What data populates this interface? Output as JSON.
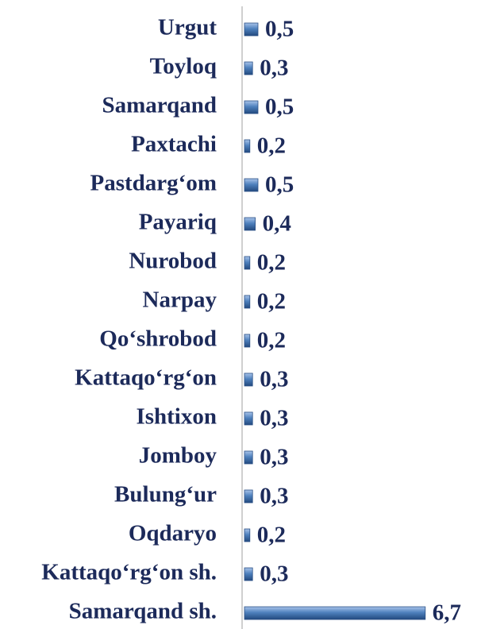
{
  "chart_data": {
    "type": "bar",
    "orientation": "horizontal",
    "categories": [
      "Urgut",
      "Toyloq",
      "Samarqand",
      "Paxtachi",
      "Pastdarg‘om",
      "Payariq",
      "Nurobod",
      "Narpay",
      "Qo‘shrobod",
      "Kattaqo‘rg‘on",
      "Ishtixon",
      "Jomboy",
      "Bulung‘ur",
      "Oqdaryo",
      "Kattaqo‘rg‘on sh.",
      "Samarqand sh."
    ],
    "values": [
      0.5,
      0.3,
      0.5,
      0.2,
      0.5,
      0.4,
      0.2,
      0.2,
      0.2,
      0.3,
      0.3,
      0.3,
      0.3,
      0.2,
      0.3,
      6.7
    ],
    "value_labels": [
      "0,5",
      "0,3",
      "0,5",
      "0,2",
      "0,5",
      "0,4",
      "0,2",
      "0,2",
      "0,2",
      "0,3",
      "0,3",
      "0,3",
      "0,3",
      "0,2",
      "0,3",
      "6,7"
    ],
    "color": "#4f81bd",
    "xlim": [
      0,
      7
    ]
  }
}
